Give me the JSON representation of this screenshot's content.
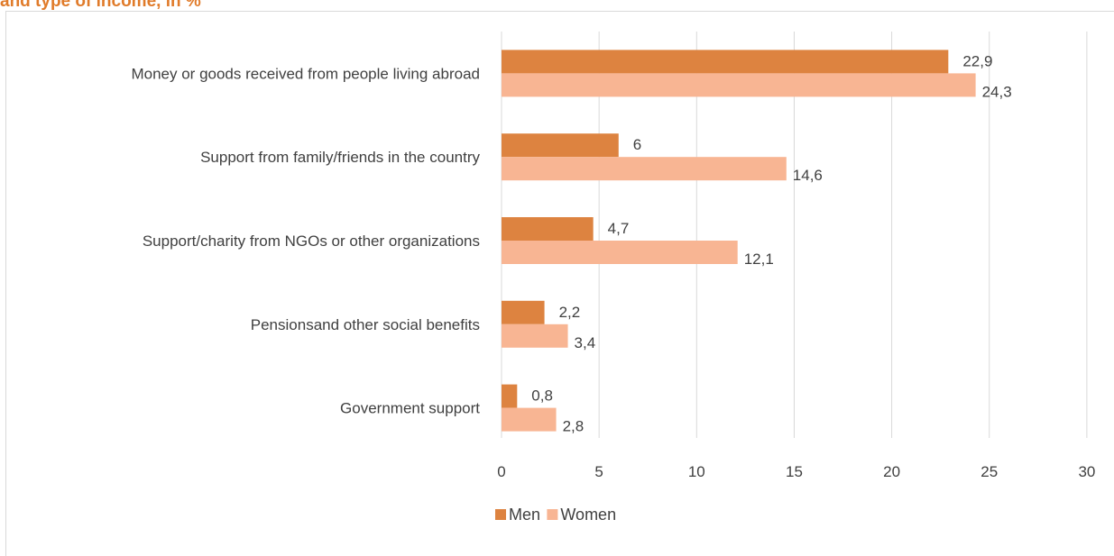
{
  "chart_data": {
    "type": "bar",
    "orientation": "horizontal",
    "title": "and type of income, in %",
    "categories": [
      "Money or goods received from people living abroad",
      "Support from family/friends in the country",
      "Support/charity from NGOs or other organizations",
      "Pensionsand other social benefits",
      "Government support"
    ],
    "series": [
      {
        "name": "Men",
        "color": "#dd8340",
        "values": [
          22.9,
          6,
          4.7,
          2.2,
          0.8
        ],
        "labels": [
          "22,9",
          "6",
          "4,7",
          "2,2",
          "0,8"
        ]
      },
      {
        "name": "Women",
        "color": "#f8b593",
        "values": [
          24.3,
          14.6,
          12.1,
          3.4,
          2.8
        ],
        "labels": [
          "24,3",
          "14,6",
          "12,1",
          "3,4",
          "2,8"
        ]
      }
    ],
    "xlim": [
      0,
      30
    ],
    "xticks": [
      0,
      5,
      10,
      15,
      20,
      25,
      30
    ],
    "grid": true,
    "legend_position": "bottom"
  }
}
